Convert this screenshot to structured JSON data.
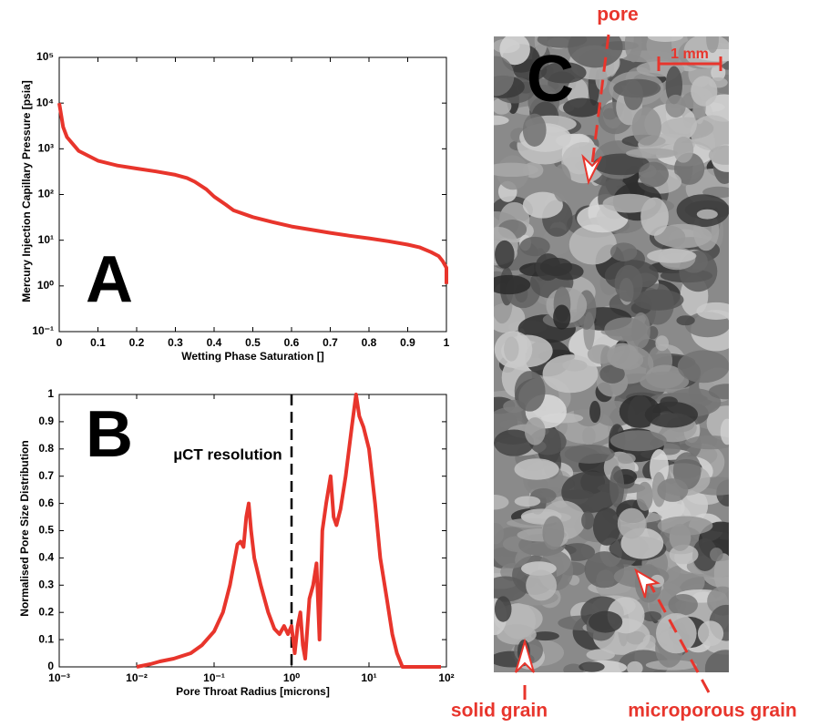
{
  "chart_data": [
    {
      "type": "line",
      "panel_label": "A",
      "xlabel": "Wetting Phase Saturation []",
      "ylabel": "Mercury Injection Capillary Pressure [psia]",
      "x": [
        0,
        0.01,
        0.02,
        0.05,
        0.1,
        0.15,
        0.2,
        0.25,
        0.3,
        0.33,
        0.35,
        0.38,
        0.4,
        0.43,
        0.45,
        0.5,
        0.55,
        0.6,
        0.65,
        0.7,
        0.75,
        0.8,
        0.85,
        0.9,
        0.93,
        0.96,
        0.98,
        0.99,
        1.0,
        1.0
      ],
      "series": [
        {
          "color": "#e8352c",
          "values": [
            10000,
            3000,
            1800,
            900,
            550,
            430,
            370,
            320,
            270,
            230,
            190,
            130,
            90,
            60,
            45,
            32,
            25,
            20,
            17,
            14.5,
            12.5,
            11,
            9.5,
            8,
            7,
            5.5,
            4.5,
            3.5,
            2.5,
            1.1
          ]
        }
      ],
      "xlim": [
        0,
        1
      ],
      "xticks": [
        0,
        0.1,
        0.2,
        0.3,
        0.4,
        0.5,
        0.6,
        0.7,
        0.8,
        0.9,
        1
      ],
      "ylim": [
        0.1,
        100000
      ],
      "yscale": "log",
      "yticks": [
        {
          "value": 0.1,
          "label": "10⁻¹"
        },
        {
          "value": 1,
          "label": "10⁰"
        },
        {
          "value": 10,
          "label": "10¹"
        },
        {
          "value": 100,
          "label": "10²"
        },
        {
          "value": 1000,
          "label": "10³"
        },
        {
          "value": 10000,
          "label": "10⁴"
        },
        {
          "value": 100000,
          "label": "10⁵"
        }
      ]
    },
    {
      "type": "line",
      "panel_label": "B",
      "xlabel": "Pore Throat Radius [microns]",
      "ylabel": "Normalised Pore Size Distribution",
      "annotation": "µCT resolution",
      "reference_x": 1,
      "x": [
        0.01,
        0.015,
        0.02,
        0.03,
        0.05,
        0.07,
        0.1,
        0.13,
        0.16,
        0.2,
        0.22,
        0.24,
        0.26,
        0.28,
        0.3,
        0.33,
        0.4,
        0.5,
        0.6,
        0.7,
        0.8,
        0.9,
        1.0,
        1.1,
        1.2,
        1.3,
        1.4,
        1.5,
        1.7,
        1.9,
        2.1,
        2.3,
        2.5,
        2.8,
        3.2,
        3.5,
        3.8,
        4.3,
        5,
        6,
        6.8,
        7.5,
        8.5,
        10,
        12,
        14,
        17,
        20,
        23,
        27,
        40,
        85
      ],
      "series": [
        {
          "color": "#e8352c",
          "values": [
            0,
            0.01,
            0.02,
            0.03,
            0.05,
            0.08,
            0.13,
            0.2,
            0.3,
            0.45,
            0.46,
            0.44,
            0.55,
            0.6,
            0.5,
            0.4,
            0.3,
            0.2,
            0.14,
            0.12,
            0.15,
            0.12,
            0.15,
            0.05,
            0.15,
            0.2,
            0.08,
            0.03,
            0.25,
            0.3,
            0.38,
            0.1,
            0.5,
            0.6,
            0.7,
            0.55,
            0.52,
            0.58,
            0.7,
            0.88,
            1.0,
            0.92,
            0.88,
            0.8,
            0.6,
            0.4,
            0.25,
            0.12,
            0.05,
            0,
            0,
            0
          ]
        }
      ],
      "xlim": [
        0.001,
        100
      ],
      "xscale": "log",
      "xticks": [
        {
          "value": 0.001,
          "label": "10⁻³"
        },
        {
          "value": 0.01,
          "label": "10⁻²"
        },
        {
          "value": 0.1,
          "label": "10⁻¹"
        },
        {
          "value": 1,
          "label": "10⁰"
        },
        {
          "value": 10,
          "label": "10¹"
        },
        {
          "value": 100,
          "label": "10²"
        }
      ],
      "ylim": [
        0,
        1
      ],
      "yticks": [
        0,
        0.1,
        0.2,
        0.3,
        0.4,
        0.5,
        0.6,
        0.7,
        0.8,
        0.9,
        1
      ]
    }
  ],
  "image_panel": {
    "label": "C",
    "scale_bar": "1 mm",
    "pore": "pore",
    "solid_grain": "solid grain",
    "microporous_grain": "microporous grain"
  }
}
